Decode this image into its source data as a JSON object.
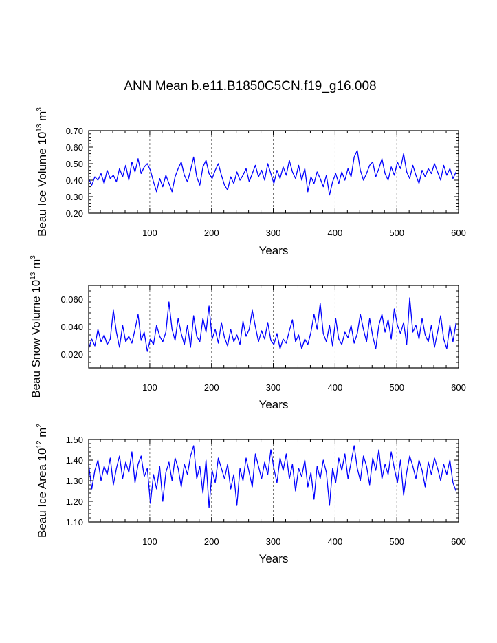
{
  "title": "ANN Mean b.e11.B1850C5CN.f19_g16.008",
  "colors": {
    "series": "#0000ff",
    "axis": "#000000",
    "grid": "#555555",
    "background": "#ffffff"
  },
  "chart_data": [
    {
      "type": "line",
      "name": "beau-ice-volume",
      "xlabel": "Years",
      "ylabel": {
        "text": "Beau Ice Volume 10",
        "exp": "13",
        "unit": " m",
        "unit_exp": "3"
      },
      "xlim": [
        1,
        600
      ],
      "ylim": [
        0.2,
        0.7
      ],
      "xticks": [
        100,
        200,
        300,
        400,
        500,
        600
      ],
      "xtick_labels": [
        "100",
        "200",
        "300",
        "400",
        "500",
        "600"
      ],
      "yticks": [
        0.2,
        0.3,
        0.4,
        0.5,
        0.6,
        0.7
      ],
      "ytick_labels": [
        "0.20",
        "0.30",
        "0.40",
        "0.50",
        "0.60",
        "0.70"
      ],
      "grid_x": [
        100,
        200,
        300,
        400,
        500
      ],
      "series": [
        {
          "name": "Beau Ice Volume",
          "x_start": 1,
          "x_step": 5,
          "values": [
            0.41,
            0.37,
            0.42,
            0.4,
            0.44,
            0.38,
            0.46,
            0.41,
            0.43,
            0.39,
            0.47,
            0.42,
            0.49,
            0.4,
            0.51,
            0.45,
            0.53,
            0.44,
            0.48,
            0.5,
            0.46,
            0.39,
            0.33,
            0.41,
            0.36,
            0.43,
            0.38,
            0.33,
            0.42,
            0.47,
            0.51,
            0.43,
            0.39,
            0.46,
            0.54,
            0.42,
            0.37,
            0.48,
            0.52,
            0.44,
            0.41,
            0.46,
            0.5,
            0.43,
            0.37,
            0.34,
            0.42,
            0.38,
            0.45,
            0.4,
            0.43,
            0.47,
            0.39,
            0.44,
            0.49,
            0.42,
            0.46,
            0.4,
            0.5,
            0.44,
            0.38,
            0.46,
            0.41,
            0.48,
            0.43,
            0.52,
            0.45,
            0.41,
            0.49,
            0.4,
            0.47,
            0.33,
            0.42,
            0.38,
            0.45,
            0.41,
            0.36,
            0.43,
            0.31,
            0.39,
            0.44,
            0.38,
            0.45,
            0.4,
            0.47,
            0.42,
            0.54,
            0.58,
            0.46,
            0.4,
            0.44,
            0.49,
            0.51,
            0.42,
            0.47,
            0.53,
            0.44,
            0.4,
            0.48,
            0.43,
            0.51,
            0.47,
            0.56,
            0.45,
            0.41,
            0.49,
            0.43,
            0.38,
            0.46,
            0.42,
            0.47,
            0.44,
            0.5,
            0.45,
            0.4,
            0.49,
            0.43,
            0.47,
            0.41,
            0.45
          ]
        }
      ]
    },
    {
      "type": "line",
      "name": "beau-snow-volume",
      "xlabel": "Years",
      "ylabel": {
        "text": "Beau Snow Volume 10",
        "exp": "13",
        "unit": " m",
        "unit_exp": "3"
      },
      "xlim": [
        1,
        600
      ],
      "ylim": [
        0.01,
        0.07
      ],
      "xticks": [
        100,
        200,
        300,
        400,
        500,
        600
      ],
      "xtick_labels": [
        "100",
        "200",
        "300",
        "400",
        "500",
        "600"
      ],
      "yticks": [
        0.02,
        0.04,
        0.06
      ],
      "ytick_labels": [
        "0.020",
        "0.040",
        "0.060"
      ],
      "grid_x": [
        100,
        200,
        300,
        400,
        500
      ],
      "series": [
        {
          "name": "Beau Snow Volume",
          "x_start": 1,
          "x_step": 5,
          "values": [
            0.024,
            0.031,
            0.026,
            0.038,
            0.029,
            0.034,
            0.027,
            0.031,
            0.052,
            0.036,
            0.025,
            0.041,
            0.029,
            0.033,
            0.028,
            0.038,
            0.049,
            0.03,
            0.036,
            0.022,
            0.031,
            0.027,
            0.041,
            0.033,
            0.029,
            0.036,
            0.058,
            0.038,
            0.03,
            0.046,
            0.035,
            0.027,
            0.041,
            0.025,
            0.048,
            0.033,
            0.029,
            0.046,
            0.036,
            0.055,
            0.031,
            0.038,
            0.028,
            0.043,
            0.032,
            0.026,
            0.038,
            0.029,
            0.034,
            0.027,
            0.044,
            0.033,
            0.038,
            0.052,
            0.04,
            0.029,
            0.037,
            0.031,
            0.043,
            0.03,
            0.027,
            0.035,
            0.024,
            0.031,
            0.028,
            0.037,
            0.045,
            0.029,
            0.034,
            0.024,
            0.031,
            0.027,
            0.036,
            0.049,
            0.038,
            0.057,
            0.035,
            0.029,
            0.041,
            0.026,
            0.046,
            0.031,
            0.027,
            0.036,
            0.032,
            0.041,
            0.028,
            0.035,
            0.049,
            0.038,
            0.029,
            0.046,
            0.033,
            0.024,
            0.041,
            0.049,
            0.036,
            0.045,
            0.031,
            0.053,
            0.041,
            0.035,
            0.043,
            0.027,
            0.061,
            0.036,
            0.041,
            0.031,
            0.046,
            0.034,
            0.029,
            0.041,
            0.025,
            0.036,
            0.048,
            0.031,
            0.024,
            0.041,
            0.029,
            0.043
          ]
        }
      ]
    },
    {
      "type": "line",
      "name": "beau-ice-area",
      "xlabel": "Years",
      "ylabel": {
        "text": "Beau Ice Area 10",
        "exp": "12",
        "unit": " m",
        "unit_exp": "2"
      },
      "xlim": [
        1,
        600
      ],
      "ylim": [
        1.1,
        1.5
      ],
      "xticks": [
        100,
        200,
        300,
        400,
        500,
        600
      ],
      "xtick_labels": [
        "100",
        "200",
        "300",
        "400",
        "500",
        "600"
      ],
      "yticks": [
        1.1,
        1.2,
        1.3,
        1.4,
        1.5
      ],
      "ytick_labels": [
        "1.10",
        "1.20",
        "1.30",
        "1.40",
        "1.50"
      ],
      "grid_x": [
        100,
        200,
        300,
        400,
        500
      ],
      "series": [
        {
          "name": "Beau Ice Area",
          "x_start": 1,
          "x_step": 5,
          "values": [
            1.38,
            1.26,
            1.35,
            1.4,
            1.3,
            1.37,
            1.33,
            1.41,
            1.28,
            1.36,
            1.42,
            1.31,
            1.39,
            1.34,
            1.44,
            1.29,
            1.38,
            1.42,
            1.32,
            1.36,
            1.19,
            1.33,
            1.26,
            1.37,
            1.2,
            1.34,
            1.39,
            1.3,
            1.41,
            1.36,
            1.27,
            1.38,
            1.33,
            1.42,
            1.47,
            1.31,
            1.37,
            1.24,
            1.4,
            1.17,
            1.35,
            1.29,
            1.41,
            1.36,
            1.31,
            1.38,
            1.26,
            1.33,
            1.18,
            1.36,
            1.3,
            1.41,
            1.34,
            1.27,
            1.43,
            1.37,
            1.31,
            1.39,
            1.33,
            1.45,
            1.36,
            1.29,
            1.41,
            1.35,
            1.43,
            1.31,
            1.38,
            1.25,
            1.36,
            1.32,
            1.4,
            1.27,
            1.34,
            1.21,
            1.37,
            1.31,
            1.4,
            1.34,
            1.18,
            1.36,
            1.29,
            1.41,
            1.35,
            1.43,
            1.31,
            1.39,
            1.47,
            1.36,
            1.3,
            1.42,
            1.37,
            1.28,
            1.41,
            1.35,
            1.45,
            1.31,
            1.38,
            1.33,
            1.44,
            1.36,
            1.29,
            1.4,
            1.23,
            1.34,
            1.42,
            1.37,
            1.31,
            1.4,
            1.35,
            1.27,
            1.39,
            1.33,
            1.41,
            1.36,
            1.3,
            1.38,
            1.33,
            1.4,
            1.29,
            1.25
          ]
        }
      ]
    }
  ]
}
